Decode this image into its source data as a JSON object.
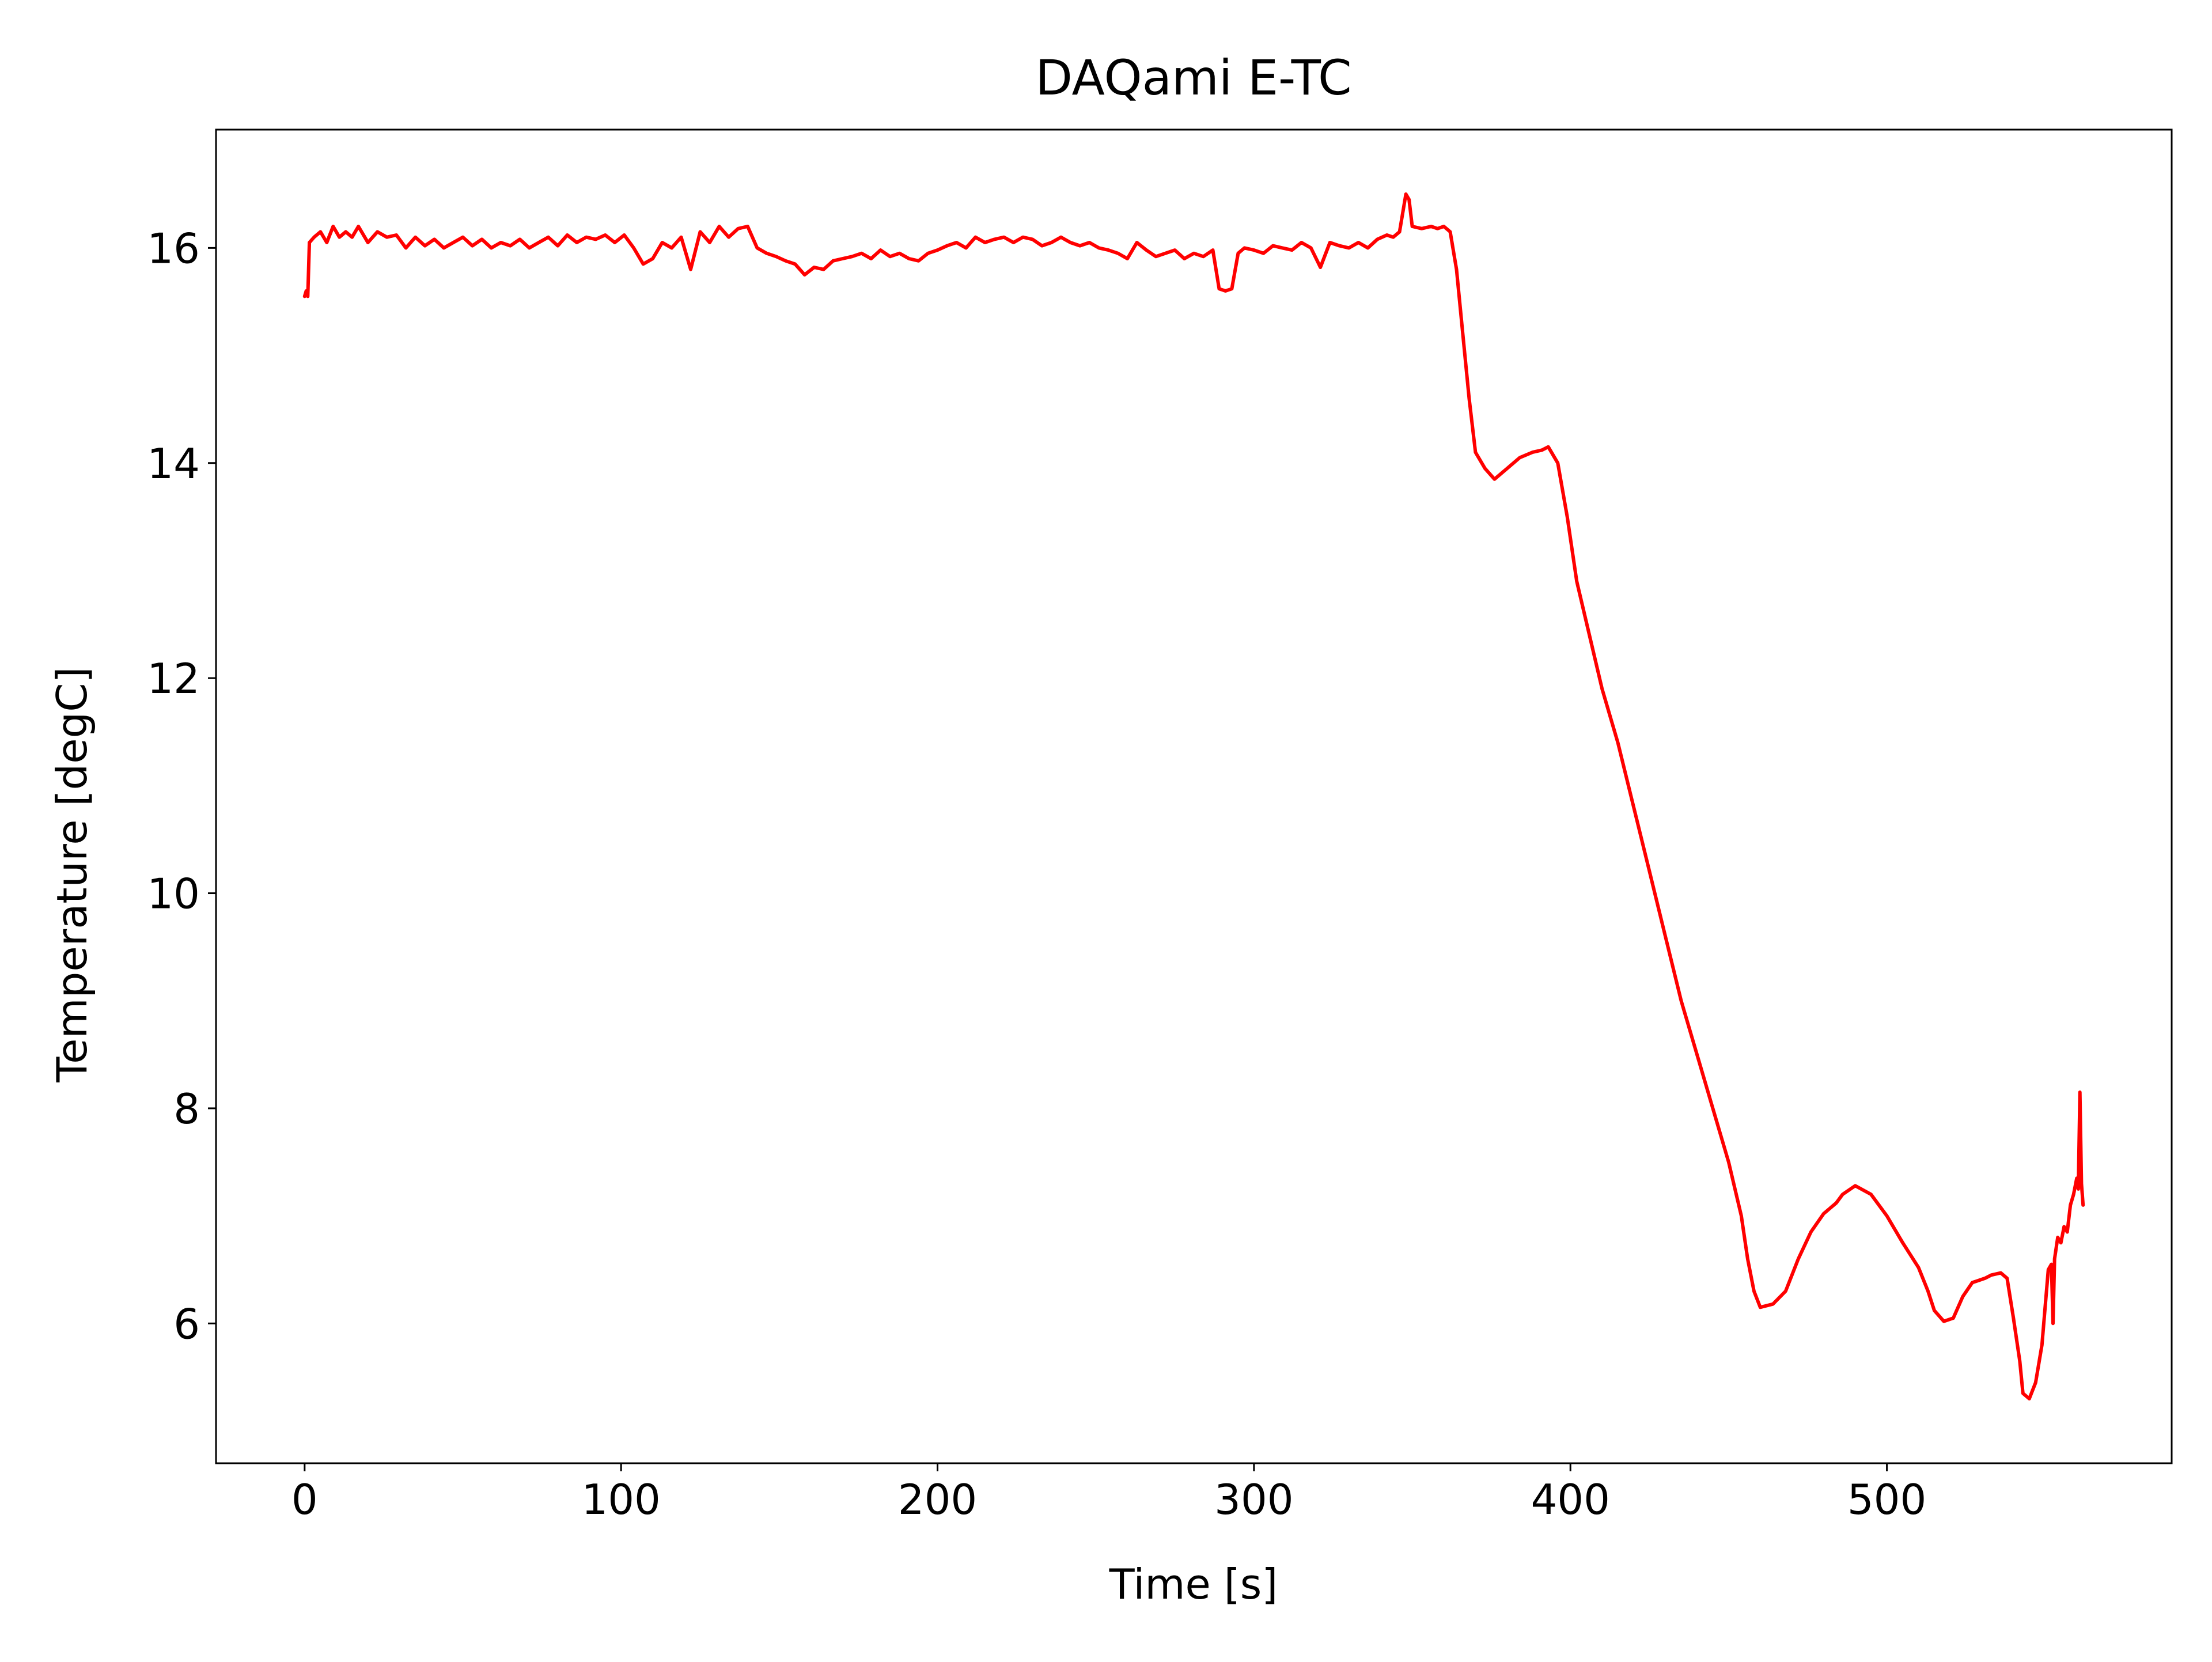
{
  "chart_data": {
    "type": "line",
    "title": "DAQami E-TC",
    "xlabel": "Time [s]",
    "ylabel": "Temperature [degC]",
    "xlim": [
      -28,
      590
    ],
    "ylim": [
      4.7,
      17.1
    ],
    "xticks": [
      0,
      100,
      200,
      300,
      400,
      500
    ],
    "yticks": [
      6,
      8,
      10,
      12,
      14,
      16
    ],
    "grid": false,
    "legend": "none",
    "series": [
      {
        "color": "#ff0000",
        "x": [
          0,
          0.5,
          1,
          1.5,
          3,
          5,
          7,
          9,
          11,
          13,
          15,
          17,
          20,
          23,
          26,
          29,
          32,
          35,
          38,
          41,
          44,
          47,
          50,
          53,
          56,
          59,
          62,
          65,
          68,
          71,
          74,
          77,
          80,
          83,
          86,
          89,
          92,
          95,
          98,
          101,
          104,
          107,
          110,
          113,
          116,
          119,
          122,
          125,
          128,
          131,
          134,
          137,
          140,
          143,
          146,
          149,
          152,
          155,
          158,
          161,
          164,
          167,
          170,
          173,
          176,
          179,
          182,
          185,
          188,
          191,
          194,
          197,
          200,
          203,
          206,
          209,
          212,
          215,
          218,
          221,
          224,
          227,
          230,
          233,
          236,
          239,
          242,
          245,
          248,
          251,
          254,
          257,
          260,
          263,
          266,
          269,
          272,
          275,
          278,
          281,
          284,
          287,
          289,
          291,
          293,
          295,
          297,
          300,
          303,
          306,
          309,
          312,
          315,
          318,
          321,
          324,
          327,
          330,
          333,
          336,
          339,
          342,
          344,
          346,
          348,
          349,
          350,
          353,
          356,
          358,
          360,
          362,
          364,
          366,
          368,
          370,
          373,
          376,
          380,
          384,
          388,
          391,
          393,
          396,
          399,
          402,
          406,
          410,
          415,
          420,
          425,
          430,
          435,
          440,
          445,
          450,
          454,
          456,
          458,
          460,
          464,
          468,
          472,
          476,
          480,
          484,
          486,
          490,
          495,
          500,
          505,
          510,
          513,
          515,
          518,
          521,
          524,
          527,
          531,
          533,
          536,
          538,
          540,
          542,
          543,
          545,
          547,
          549,
          550,
          551,
          552,
          552.5,
          553,
          554,
          555,
          556,
          557,
          558,
          559,
          560,
          560.5,
          561,
          561.5,
          562
        ],
        "y": [
          15.55,
          15.6,
          15.55,
          16.05,
          16.1,
          16.15,
          16.05,
          16.2,
          16.1,
          16.15,
          16.1,
          16.2,
          16.05,
          16.15,
          16.1,
          16.12,
          16.0,
          16.1,
          16.02,
          16.08,
          16.0,
          16.05,
          16.1,
          16.02,
          16.08,
          16.0,
          16.05,
          16.02,
          16.08,
          16.0,
          16.05,
          16.1,
          16.02,
          16.12,
          16.05,
          16.1,
          16.08,
          16.12,
          16.05,
          16.12,
          16.0,
          15.85,
          15.9,
          16.05,
          16.0,
          16.1,
          15.8,
          16.15,
          16.05,
          16.2,
          16.1,
          16.18,
          16.2,
          16.0,
          15.95,
          15.92,
          15.88,
          15.85,
          15.75,
          15.82,
          15.8,
          15.88,
          15.9,
          15.92,
          15.95,
          15.9,
          15.98,
          15.92,
          15.95,
          15.9,
          15.88,
          15.95,
          15.98,
          16.02,
          16.05,
          16.0,
          16.1,
          16.05,
          16.08,
          16.1,
          16.05,
          16.1,
          16.08,
          16.02,
          16.05,
          16.1,
          16.05,
          16.02,
          16.05,
          16.0,
          15.98,
          15.95,
          15.9,
          16.05,
          15.98,
          15.92,
          15.95,
          15.98,
          15.9,
          15.95,
          15.92,
          15.98,
          15.62,
          15.6,
          15.62,
          15.95,
          16.0,
          15.98,
          15.95,
          16.02,
          16.0,
          15.98,
          16.05,
          16.0,
          15.82,
          16.05,
          16.02,
          16.0,
          16.05,
          16.0,
          16.08,
          16.12,
          16.1,
          16.15,
          16.5,
          16.45,
          16.2,
          16.18,
          16.2,
          16.18,
          16.2,
          16.15,
          15.8,
          15.2,
          14.6,
          14.1,
          13.95,
          13.85,
          13.95,
          14.05,
          14.1,
          14.12,
          14.15,
          14.0,
          13.5,
          12.9,
          12.4,
          11.9,
          11.4,
          10.8,
          10.2,
          9.6,
          9.0,
          8.5,
          8.0,
          7.5,
          7.0,
          6.6,
          6.3,
          6.15,
          6.18,
          6.3,
          6.6,
          6.85,
          7.02,
          7.12,
          7.2,
          7.28,
          7.2,
          7.0,
          6.75,
          6.52,
          6.3,
          6.12,
          6.02,
          6.05,
          6.25,
          6.38,
          6.42,
          6.45,
          6.47,
          6.42,
          6.05,
          5.65,
          5.35,
          5.3,
          5.45,
          5.8,
          6.15,
          6.5,
          6.55,
          6.0,
          6.6,
          6.8,
          6.75,
          6.9,
          6.85,
          7.1,
          7.2,
          7.35,
          7.25,
          8.15,
          7.3,
          7.1
        ]
      }
    ]
  }
}
